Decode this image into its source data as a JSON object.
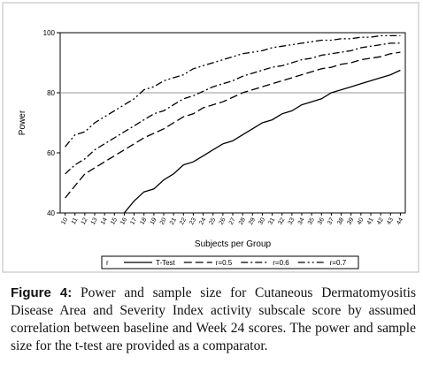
{
  "chart_data": {
    "type": "line",
    "x_label": "Subjects per Group",
    "y_label": "Power",
    "categories": [
      "10",
      "11",
      "12",
      "13",
      "14",
      "15",
      "16",
      "17",
      "18",
      "19",
      "20",
      "21",
      "22",
      "23",
      "24",
      "25",
      "26",
      "27",
      "28",
      "29",
      "30",
      "31",
      "32",
      "33",
      "34",
      "35",
      "36",
      "37",
      "38",
      "39",
      "40",
      "41",
      "42",
      "43",
      "44"
    ],
    "ylim": [
      40,
      100
    ],
    "yticks": [
      40,
      60,
      80,
      100
    ],
    "reference_line": 80,
    "legend_title": "r",
    "series": [
      {
        "name": "T-Test",
        "color": "#000000",
        "dash": "solid",
        "values": [
          null,
          null,
          null,
          null,
          null,
          null,
          40,
          44,
          47,
          48,
          51,
          53,
          56,
          57,
          59,
          61,
          63,
          64,
          66,
          68,
          70,
          71,
          73,
          74,
          76,
          77,
          78,
          80,
          81,
          82,
          83,
          84,
          85,
          86,
          87.5
        ]
      },
      {
        "name": "r=0.5",
        "color": "#000000",
        "dash": "long",
        "values": [
          45,
          49,
          53,
          55,
          57,
          59,
          61,
          63,
          65,
          66.5,
          68,
          70,
          72,
          73,
          75,
          76,
          77,
          78.5,
          80,
          81,
          82,
          83,
          84,
          85,
          86,
          87,
          88,
          88.5,
          89.5,
          90,
          91,
          91.5,
          92,
          93,
          93.5
        ]
      },
      {
        "name": "r=0.6",
        "color": "#000000",
        "dash": "dashdot",
        "values": [
          53,
          56,
          58,
          61,
          63,
          65,
          67,
          69,
          71,
          73,
          74,
          76,
          78,
          79,
          80.5,
          82,
          83,
          84,
          85.5,
          86.5,
          87.5,
          88.5,
          89,
          90,
          91,
          91.5,
          92.5,
          93,
          93.5,
          94,
          95,
          95.5,
          96,
          96.5,
          96.5
        ]
      },
      {
        "name": "r=0.7",
        "color": "#000000",
        "dash": "dashdotdot",
        "values": [
          62,
          66,
          67,
          70,
          72,
          74,
          76,
          78,
          81,
          82,
          84,
          85,
          86,
          88,
          89,
          90,
          91,
          92,
          93,
          93.5,
          94,
          95,
          95.5,
          96,
          96.5,
          97,
          97.5,
          97.5,
          98,
          98,
          98.5,
          98.5,
          99,
          99,
          99
        ]
      }
    ]
  },
  "caption": {
    "label": "Figure 4:",
    "text": "Power and sample size for Cutaneous Dermatomyositis Disease Area and Severity Index activity subscale score by assumed correlation between baseline and Week 24 scores. The power and sample size for the t-test are provided as a comparator."
  }
}
